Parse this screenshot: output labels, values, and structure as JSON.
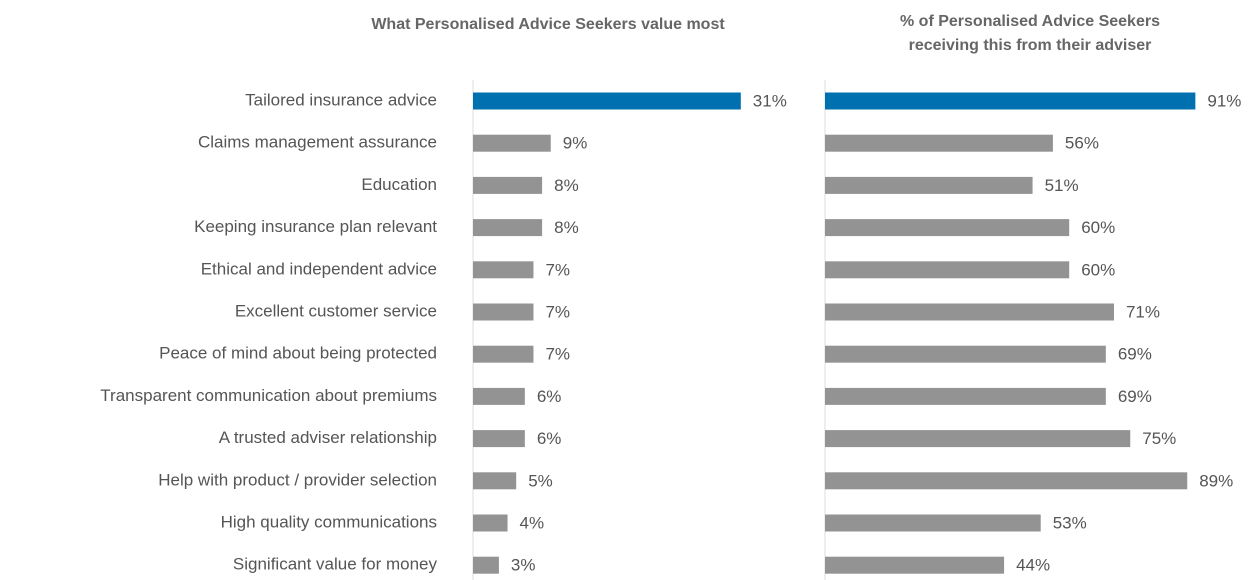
{
  "chart_data": [
    {
      "type": "barh",
      "title": "What Personalised Advice Seekers value most",
      "categories": [
        "Tailored insurance advice",
        "Claims management assurance",
        "Education",
        "Keeping insurance plan relevant",
        "Ethical and independent advice",
        "Excellent customer service",
        "Peace of mind about being protected",
        "Transparent communication about premiums",
        "A trusted adviser relationship",
        "Help with product / provider selection",
        "High quality communications",
        "Significant value for money"
      ],
      "values": [
        31,
        9,
        8,
        8,
        7,
        7,
        7,
        6,
        6,
        5,
        4,
        3
      ],
      "value_labels": [
        "31%",
        "9%",
        "8%",
        "8%",
        "7%",
        "7%",
        "7%",
        "6%",
        "6%",
        "5%",
        "4%",
        "3%"
      ],
      "colors": [
        "#0070b0",
        "#939393",
        "#939393",
        "#939393",
        "#939393",
        "#939393",
        "#939393",
        "#939393",
        "#939393",
        "#939393",
        "#939393",
        "#939393"
      ],
      "xlim": [
        0,
        36
      ]
    },
    {
      "type": "barh",
      "title": [
        "% of Personalised Advice Seekers",
        "receiving this from their adviser"
      ],
      "values": [
        91,
        56,
        51,
        60,
        60,
        71,
        69,
        69,
        75,
        89,
        53,
        44
      ],
      "value_labels": [
        "91%",
        "56%",
        "51%",
        "60%",
        "60%",
        "71%",
        "69%",
        "69%",
        "75%",
        "89%",
        "53%",
        "44%"
      ],
      "colors": [
        "#0070b0",
        "#939393",
        "#939393",
        "#939393",
        "#939393",
        "#939393",
        "#939393",
        "#939393",
        "#939393",
        "#939393",
        "#939393",
        "#939393"
      ],
      "xlim": [
        0,
        100
      ]
    }
  ]
}
